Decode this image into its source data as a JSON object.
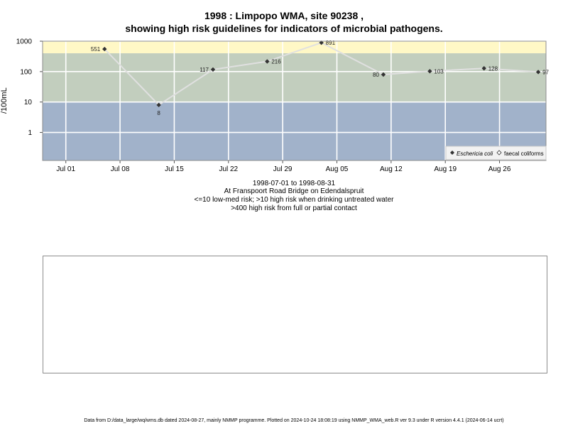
{
  "title_line1": "1998 : Limpopo WMA, site 90238 ,",
  "title_line2": "showing high risk guidelines for indicators of microbial pathogens.",
  "ylabel": "/100mL",
  "caption": {
    "date_range": "1998-07-01 to 1998-08-31",
    "location": "At Franspoort Road Bridge on Edendalspruit",
    "guideline_low": "<=10 low-med risk; >10 high risk when drinking untreated water",
    "guideline_high": ">400 high risk from full or partial contact"
  },
  "footer": "Data from D:/data_large/wq/wms.db dated 2024-08-27, mainly NMMP programme. Plotted on 2024-10-24 18:08:19 using NMMP_WMA_web.R ver 9.3 under R version 4.4.1 (2024-06-14 ucrt)",
  "colors": {
    "band_high": "#fff8c6",
    "band_mid": "#c2cebe",
    "band_low": "#a1b2ca",
    "line": "#e0e0e0",
    "point": "#333333",
    "grid": "#ffffff"
  },
  "chart_data": {
    "type": "line",
    "title": "1998 : Limpopo WMA, site 90238 , showing high risk guidelines for indicators of microbial pathogens.",
    "ylabel": "/100mL",
    "y_scale": "log10",
    "ylim": [
      0.12,
      1000
    ],
    "xlim": [
      "1998-06-28",
      "1998-09-01"
    ],
    "grid": true,
    "legend_position": "bottom-right",
    "x_ticks": [
      {
        "date": "1998-07-01",
        "label": "Jul 01"
      },
      {
        "date": "1998-07-08",
        "label": "Jul 08"
      },
      {
        "date": "1998-07-15",
        "label": "Jul 15"
      },
      {
        "date": "1998-07-22",
        "label": "Jul 22"
      },
      {
        "date": "1998-07-29",
        "label": "Jul 29"
      },
      {
        "date": "1998-08-05",
        "label": "Aug 05"
      },
      {
        "date": "1998-08-12",
        "label": "Aug 12"
      },
      {
        "date": "1998-08-19",
        "label": "Aug 19"
      },
      {
        "date": "1998-08-26",
        "label": "Aug 26"
      }
    ],
    "y_ticks": [
      {
        "value": 1,
        "label": "1"
      },
      {
        "value": 10,
        "label": "10"
      },
      {
        "value": 100,
        "label": "100"
      },
      {
        "value": 1000,
        "label": "1000"
      }
    ],
    "bands": [
      {
        "from": 400,
        "to": 1000,
        "meaning": "high risk from full or partial contact"
      },
      {
        "from": 10,
        "to": 400,
        "meaning": "high risk when drinking untreated water"
      },
      {
        "from": 0.12,
        "to": 10,
        "meaning": "low-med risk"
      }
    ],
    "series": [
      {
        "name": "Eschericia coli",
        "marker": "filled-diamond",
        "points": [
          {
            "x": "1998-07-06",
            "y": 551,
            "label": "551",
            "label_side": "left"
          },
          {
            "x": "1998-07-13",
            "y": 8,
            "label": "8",
            "label_side": "below"
          },
          {
            "x": "1998-07-20",
            "y": 117,
            "label": "117",
            "label_side": "left"
          },
          {
            "x": "1998-07-27",
            "y": 216,
            "label": "216",
            "label_side": "right"
          },
          {
            "x": "1998-08-03",
            "y": 891,
            "label": "891",
            "label_side": "right"
          },
          {
            "x": "1998-08-11",
            "y": 80,
            "label": "80",
            "label_side": "left"
          },
          {
            "x": "1998-08-17",
            "y": 103,
            "label": "103",
            "label_side": "right"
          },
          {
            "x": "1998-08-24",
            "y": 128,
            "label": "128",
            "label_side": "right"
          },
          {
            "x": "1998-08-31",
            "y": 97,
            "label": "97",
            "label_side": "right"
          }
        ]
      },
      {
        "name": "faecal coliforms",
        "marker": "open-diamond",
        "points": []
      }
    ]
  }
}
